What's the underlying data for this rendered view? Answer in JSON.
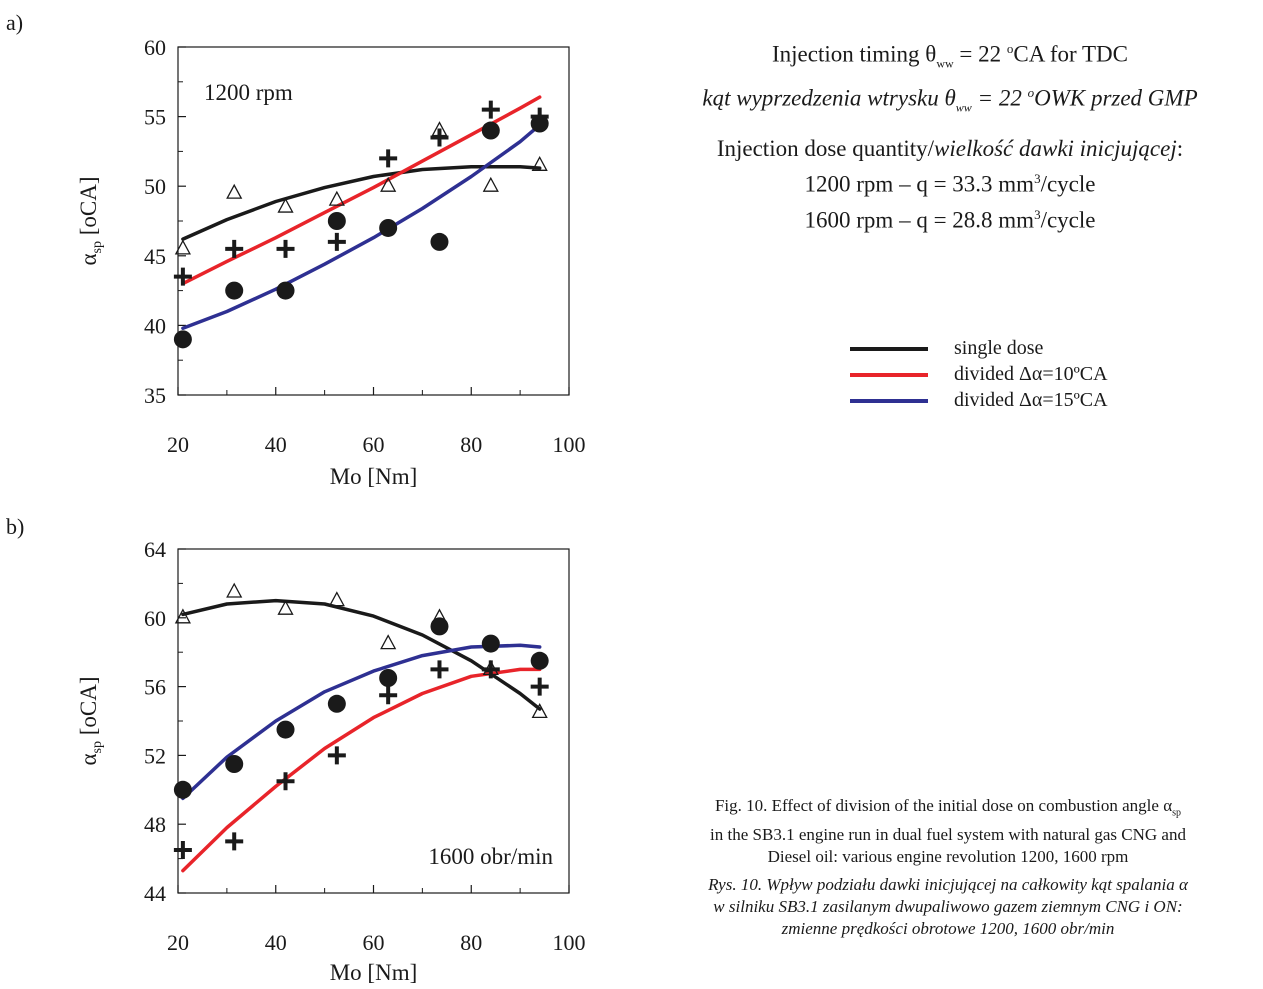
{
  "panel_labels": [
    "a)",
    "b)"
  ],
  "info": {
    "timing_en_a": "Injection timing θ",
    "timing_en_sub": "ww",
    "timing_en_b": " = 22 ",
    "timing_en_sup": "o",
    "timing_en_c": "CA for TDC",
    "timing_pl_a": "kąt wyprzedzenia wtrysku θ",
    "timing_pl_sub": "ww",
    "timing_pl_b": " = 22 ",
    "timing_pl_sup": "o",
    "timing_pl_c": "OWK przed GMP",
    "dose_title_en": "Injection dose quantity/",
    "dose_title_pl": "wielkość dawki inicjującej",
    "dose_title_end": ":",
    "dose_1200_a": "1200 rpm – q = 33.3 mm",
    "dose_1200_sup": "3",
    "dose_1200_b": "/cycle",
    "dose_1600_a": "1600 rpm – q = 28.8 mm",
    "dose_1600_sup": "3",
    "dose_1600_b": "/cycle"
  },
  "legend": [
    {
      "label": "single dose",
      "color": "#1a1a1a"
    },
    {
      "label": "divided Δα=10ºCA",
      "color": "#e8242a"
    },
    {
      "label": "divided Δα=15ºCA",
      "color": "#2e3092"
    }
  ],
  "caption": {
    "en_a": "Fig. 10. Effect of division of the initial dose on combustion angle α",
    "en_sub": "sp",
    "en_b": "in the SB3.1 engine run in dual fuel system with natural gas CNG and",
    "en_c": "Diesel oil: various engine revolution 1200, 1600 rpm",
    "pl_a": "Rys. 10. Wpływ podziału dawki inicjującej na całkowity kąt spalania α",
    "pl_b": "w silniku SB3.1 zasilanym dwupaliwowo gazem ziemnym CNG i ON:",
    "pl_c": "zmienne prędkości obrotowe 1200, 1600 obr/min"
  },
  "chart_data": [
    {
      "type": "scatter",
      "panel": "a)",
      "annotation": "1200 rpm",
      "xlabel": "Mo  [Nm]",
      "ylabel_main": "α",
      "ylabel_sub": "sp",
      "ylabel_unit": "[oCA]",
      "xlim": [
        20,
        100
      ],
      "ylim": [
        35,
        60
      ],
      "xticks": [
        20,
        40,
        60,
        80,
        100
      ],
      "yticks": [
        35,
        40,
        45,
        50,
        55,
        60
      ],
      "markers": {
        "single_dose_triangle": [
          [
            21,
            45.5
          ],
          [
            31.5,
            49.5
          ],
          [
            42,
            48.5
          ],
          [
            52.5,
            49
          ],
          [
            63,
            50
          ],
          [
            73.5,
            54
          ],
          [
            84,
            50
          ],
          [
            94,
            51.5
          ]
        ],
        "divided_10_plus": [
          [
            21,
            43.5
          ],
          [
            31.5,
            45.5
          ],
          [
            42,
            45.5
          ],
          [
            52.5,
            46
          ],
          [
            63,
            52
          ],
          [
            73.5,
            53.5
          ],
          [
            84,
            55.5
          ],
          [
            94,
            55
          ]
        ],
        "divided_15_circle": [
          [
            21,
            39
          ],
          [
            31.5,
            42.5
          ],
          [
            42,
            42.5
          ],
          [
            52.5,
            47.5
          ],
          [
            63,
            47
          ],
          [
            73.5,
            46
          ],
          [
            84,
            54
          ],
          [
            94,
            54.5
          ]
        ]
      },
      "curves": [
        {
          "legend": "single dose",
          "x": [
            21,
            30,
            40,
            50,
            60,
            70,
            80,
            90,
            94
          ],
          "y": [
            46.2,
            47.6,
            48.9,
            49.9,
            50.7,
            51.2,
            51.4,
            51.4,
            51.3
          ]
        },
        {
          "legend": "divided Δα=10ºCA",
          "x": [
            21,
            30,
            40,
            50,
            60,
            70,
            80,
            90,
            94
          ],
          "y": [
            43.0,
            44.6,
            46.3,
            48.1,
            49.9,
            51.8,
            53.7,
            55.6,
            56.4
          ]
        },
        {
          "legend": "divided Δα=15ºCA",
          "x": [
            21,
            30,
            40,
            50,
            60,
            70,
            80,
            90,
            94
          ],
          "y": [
            39.8,
            41.0,
            42.6,
            44.4,
            46.3,
            48.4,
            50.7,
            53.2,
            54.4
          ]
        }
      ]
    },
    {
      "type": "scatter",
      "panel": "b)",
      "annotation": "1600 obr/min",
      "xlabel": "Mo  [Nm]",
      "ylabel_main": "α",
      "ylabel_sub": "sp",
      "ylabel_unit": "[oCA]",
      "xlim": [
        20,
        100
      ],
      "ylim": [
        44,
        64
      ],
      "xticks": [
        20,
        40,
        60,
        80,
        100
      ],
      "yticks": [
        44,
        48,
        52,
        56,
        60,
        64
      ],
      "markers": {
        "single_dose_triangle": [
          [
            21,
            60
          ],
          [
            31.5,
            61.5
          ],
          [
            42,
            60.5
          ],
          [
            52.5,
            61
          ],
          [
            63,
            58.5
          ],
          [
            73.5,
            60
          ],
          [
            84,
            57
          ],
          [
            94,
            54.5
          ]
        ],
        "divided_10_plus": [
          [
            21,
            46.5
          ],
          [
            31.5,
            47
          ],
          [
            42,
            50.5
          ],
          [
            52.5,
            52
          ],
          [
            63,
            55.5
          ],
          [
            73.5,
            57
          ],
          [
            84,
            57
          ],
          [
            94,
            56
          ]
        ],
        "divided_15_circle": [
          [
            21,
            50
          ],
          [
            31.5,
            51.5
          ],
          [
            42,
            53.5
          ],
          [
            52.5,
            55
          ],
          [
            63,
            56.5
          ],
          [
            73.5,
            59.5
          ],
          [
            84,
            58.5
          ],
          [
            94,
            57.5
          ]
        ]
      },
      "curves": [
        {
          "legend": "single dose",
          "x": [
            21,
            30,
            40,
            50,
            60,
            70,
            80,
            90,
            94
          ],
          "y": [
            60.2,
            60.8,
            61.0,
            60.8,
            60.1,
            59.0,
            57.5,
            55.6,
            54.7
          ]
        },
        {
          "legend": "divided Δα=10ºCA",
          "x": [
            21,
            30,
            40,
            50,
            60,
            70,
            80,
            90,
            94
          ],
          "y": [
            45.3,
            47.8,
            50.2,
            52.4,
            54.2,
            55.6,
            56.6,
            57.0,
            57.0
          ]
        },
        {
          "legend": "divided Δα=15ºCA",
          "x": [
            21,
            30,
            40,
            50,
            60,
            70,
            80,
            90,
            94
          ],
          "y": [
            49.5,
            51.9,
            54.0,
            55.7,
            56.9,
            57.8,
            58.3,
            58.4,
            58.3
          ]
        }
      ]
    }
  ]
}
